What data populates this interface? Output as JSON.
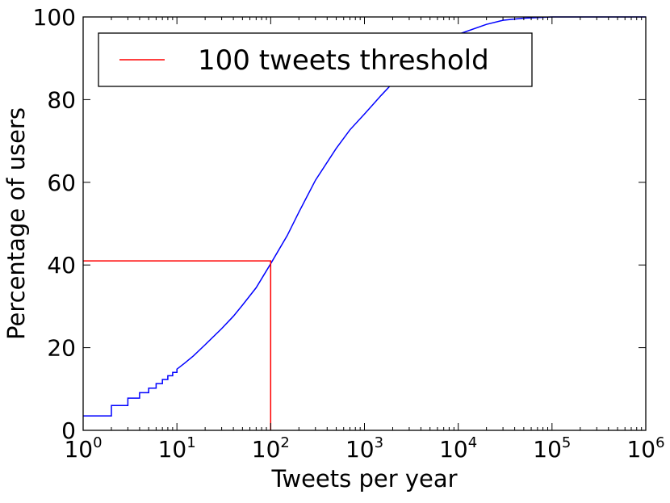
{
  "chart_data": {
    "type": "line",
    "title": "",
    "xlabel": "Tweets per year",
    "ylabel": "Percentage of users",
    "xscale": "log",
    "xlim": [
      1,
      1000000
    ],
    "ylim": [
      0,
      100
    ],
    "x_ticks": [
      {
        "value": 1,
        "base": "10",
        "exp": "0"
      },
      {
        "value": 10,
        "base": "10",
        "exp": "1"
      },
      {
        "value": 100,
        "base": "10",
        "exp": "2"
      },
      {
        "value": 1000,
        "base": "10",
        "exp": "3"
      },
      {
        "value": 10000,
        "base": "10",
        "exp": "4"
      },
      {
        "value": 100000,
        "base": "10",
        "exp": "5"
      },
      {
        "value": 1000000,
        "base": "10",
        "exp": "6"
      }
    ],
    "y_ticks": [
      {
        "value": 0,
        "label": "0"
      },
      {
        "value": 20,
        "label": "20"
      },
      {
        "value": 40,
        "label": "40"
      },
      {
        "value": 60,
        "label": "60"
      },
      {
        "value": 80,
        "label": "80"
      },
      {
        "value": 100,
        "label": "100"
      }
    ],
    "grid": false,
    "legend_position": "top-left",
    "series": [
      {
        "color": "#0000ff",
        "kind": "cdf",
        "x": [
          1,
          2,
          2,
          3,
          3,
          4,
          4,
          5,
          5,
          6,
          6,
          7,
          7,
          8,
          8,
          9,
          9,
          10,
          10,
          12,
          15,
          20,
          30,
          40,
          50,
          70,
          100,
          150,
          200,
          300,
          500,
          700,
          1000,
          1500,
          2000,
          3000,
          5000,
          7000,
          10000,
          20000,
          30000,
          50000,
          100000,
          1000000
        ],
        "y": [
          3.5,
          3.5,
          6,
          6,
          7.8,
          7.8,
          9.1,
          9.1,
          10.2,
          10.2,
          11.3,
          11.3,
          12.3,
          12.3,
          13.2,
          13.2,
          14,
          14,
          14.8,
          16.2,
          18,
          20.7,
          24.6,
          27.6,
          30.3,
          34.5,
          40.3,
          47.1,
          52.8,
          60.5,
          68.2,
          72.7,
          76.5,
          81,
          84,
          88,
          91.8,
          93.9,
          95.8,
          98.2,
          99.2,
          99.7,
          100,
          100
        ]
      },
      {
        "name": "100 tweets threshold",
        "color": "#ff0000",
        "kind": "threshold",
        "x": [
          1,
          100,
          100
        ],
        "y": [
          41,
          41,
          0
        ]
      }
    ]
  }
}
